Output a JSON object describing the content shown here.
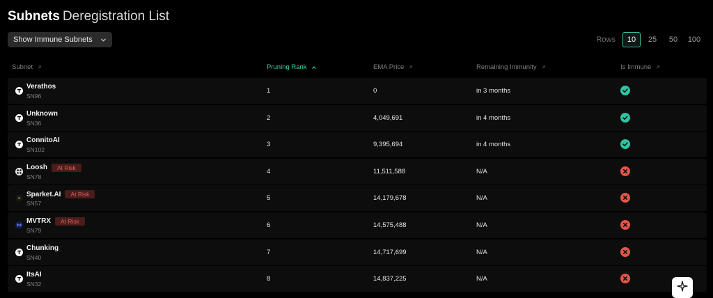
{
  "header": {
    "title_strong": "Subnets",
    "title_light": "Deregistration List"
  },
  "filter": {
    "label": "Show Immune Subnets",
    "icon": "chevron-down-icon"
  },
  "rows_control": {
    "label": "Rows",
    "options": [
      "10",
      "25",
      "50",
      "100"
    ],
    "selected": "10"
  },
  "table": {
    "columns": [
      "Subnet",
      "Pruning Rank",
      "EMA Price",
      "Remaining Immunity",
      "Is Immune"
    ],
    "active_sort_column": "Pruning Rank",
    "rows": [
      {
        "name": "Verathos",
        "sn": "SN96",
        "rank": "1",
        "price": "0",
        "immunity": "in 3 months",
        "badge": "",
        "immune": true,
        "logo": "tao-icon"
      },
      {
        "name": "Unknown",
        "sn": "SN36",
        "rank": "2",
        "price": "4,049,691",
        "immunity": "in 4 months",
        "badge": "",
        "immune": true,
        "logo": "tao-icon"
      },
      {
        "name": "ConnitoAI",
        "sn": "SN102",
        "rank": "3",
        "price": "9,395,694",
        "immunity": "in 4 months",
        "badge": "",
        "immune": true,
        "logo": "tao-icon"
      },
      {
        "name": "Loosh",
        "sn": "SN78",
        "rank": "4",
        "price": "11,511,588",
        "immunity": "N/A",
        "badge": "At Risk",
        "immune": false,
        "logo": "loosh-logo-icon"
      },
      {
        "name": "Sparket.AI",
        "sn": "SN57",
        "rank": "5",
        "price": "14,179,678",
        "immunity": "N/A",
        "badge": "At Risk",
        "immune": false,
        "logo": "sparket-logo-icon"
      },
      {
        "name": "MVTRX",
        "sn": "SN79",
        "rank": "6",
        "price": "14,575,488",
        "immunity": "N/A",
        "badge": "At Risk",
        "immune": false,
        "logo": "mvtrx-logo-icon"
      },
      {
        "name": "Chunking",
        "sn": "SN40",
        "rank": "7",
        "price": "14,717,699",
        "immunity": "N/A",
        "badge": "",
        "immune": false,
        "logo": "tao-icon"
      },
      {
        "name": "ItsAI",
        "sn": "SN32",
        "rank": "8",
        "price": "14,837,225",
        "immunity": "N/A",
        "badge": "",
        "immune": false,
        "logo": "tao-icon"
      }
    ]
  },
  "colors": {
    "accent": "#3fcfa6",
    "immune_yes": "#2ec4a0",
    "immune_no": "#e5544b",
    "badge_bg": "#4a1c1c",
    "badge_text": "#e0605a"
  },
  "fab": {
    "icon": "sparkle-icon"
  }
}
